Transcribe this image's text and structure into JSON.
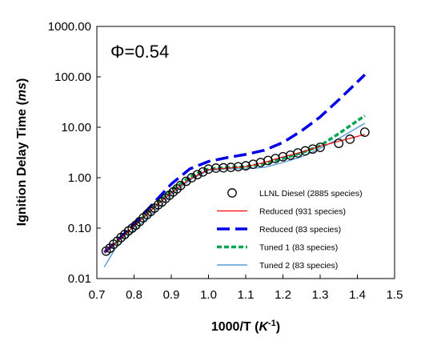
{
  "chart_data": {
    "type": "line",
    "annotation": "Φ=0.54",
    "xlabel": {
      "prefix": "1000/T (",
      "unit": "K",
      "exp": "-1",
      "suffix": ")"
    },
    "ylabel": {
      "prefix": "Ignition Delay Time (",
      "unit": "ms",
      "suffix": ")"
    },
    "xlim": [
      0.7,
      1.5
    ],
    "ylim": [
      0.01,
      1000
    ],
    "yscale": "log",
    "grid": false,
    "legend_position": "bottom-right",
    "xticks": [
      {
        "v": 0.7,
        "label": "0.7"
      },
      {
        "v": 0.8,
        "label": "0.8"
      },
      {
        "v": 0.9,
        "label": "0.9"
      },
      {
        "v": 1.0,
        "label": "1.0"
      },
      {
        "v": 1.1,
        "label": "1.1"
      },
      {
        "v": 1.2,
        "label": "1.2"
      },
      {
        "v": 1.3,
        "label": "1.3"
      },
      {
        "v": 1.4,
        "label": "1.4"
      },
      {
        "v": 1.5,
        "label": "1.5"
      }
    ],
    "yticks": [
      {
        "v": 0.01,
        "label": "0.01"
      },
      {
        "v": 0.1,
        "label": "0.10"
      },
      {
        "v": 1,
        "label": "1.00"
      },
      {
        "v": 10,
        "label": "10.00"
      },
      {
        "v": 100,
        "label": "100.00"
      },
      {
        "v": 1000,
        "label": "1000.00"
      }
    ],
    "series": [
      {
        "name": "LLNL Diesel (2885 species)",
        "style": "markers",
        "color": "#000000",
        "x": [
          0.725,
          0.735,
          0.745,
          0.755,
          0.765,
          0.775,
          0.785,
          0.795,
          0.805,
          0.815,
          0.825,
          0.835,
          0.845,
          0.855,
          0.865,
          0.875,
          0.885,
          0.895,
          0.905,
          0.915,
          0.925,
          0.94,
          0.955,
          0.97,
          0.985,
          1.0,
          1.02,
          1.04,
          1.06,
          1.08,
          1.1,
          1.12,
          1.14,
          1.16,
          1.18,
          1.2,
          1.22,
          1.24,
          1.26,
          1.28,
          1.3,
          1.35,
          1.38,
          1.42
        ],
        "y": [
          0.035,
          0.04,
          0.048,
          0.055,
          0.065,
          0.075,
          0.088,
          0.1,
          0.115,
          0.135,
          0.16,
          0.185,
          0.215,
          0.25,
          0.29,
          0.33,
          0.39,
          0.45,
          0.52,
          0.6,
          0.7,
          0.85,
          1.0,
          1.15,
          1.3,
          1.48,
          1.55,
          1.57,
          1.6,
          1.65,
          1.72,
          1.85,
          2.0,
          2.2,
          2.4,
          2.6,
          2.8,
          3.1,
          3.4,
          3.7,
          4.0,
          4.8,
          5.8,
          8.0
        ]
      },
      {
        "name": "Reduced (931 species)",
        "style": "solid",
        "color": "#ff0000",
        "x": [
          0.72,
          0.75,
          0.8,
          0.85,
          0.9,
          0.95,
          1.0,
          1.05,
          1.1,
          1.15,
          1.2,
          1.25,
          1.3,
          1.35,
          1.42
        ],
        "y": [
          0.033,
          0.05,
          0.11,
          0.24,
          0.5,
          0.95,
          1.45,
          1.55,
          1.65,
          2.0,
          2.6,
          3.2,
          4.2,
          5.3,
          7.2
        ]
      },
      {
        "name": "Reduced (83 species)",
        "style": "dashed",
        "color": "#0000e6",
        "x": [
          0.72,
          0.75,
          0.8,
          0.85,
          0.9,
          0.95,
          1.0,
          1.05,
          1.1,
          1.15,
          1.2,
          1.25,
          1.3,
          1.35,
          1.42
        ],
        "y": [
          0.033,
          0.052,
          0.12,
          0.3,
          0.75,
          1.5,
          2.1,
          2.5,
          2.9,
          3.5,
          5.0,
          8.5,
          16,
          35,
          110
        ]
      },
      {
        "name": "Tuned 1 (83 species)",
        "style": "dotted",
        "color": "#00a651",
        "x": [
          0.72,
          0.75,
          0.8,
          0.85,
          0.9,
          0.95,
          1.0,
          1.05,
          1.1,
          1.15,
          1.2,
          1.25,
          1.3,
          1.35,
          1.42
        ],
        "y": [
          0.033,
          0.05,
          0.11,
          0.25,
          0.55,
          1.05,
          1.5,
          1.6,
          1.65,
          1.9,
          2.4,
          3.1,
          4.3,
          7.5,
          17
        ]
      },
      {
        "name": "Tuned 2 (83 species)",
        "style": "solid",
        "color": "#5b9bd5",
        "x": [
          0.72,
          0.75,
          0.8,
          0.85,
          0.9,
          0.95,
          1.0,
          1.05,
          1.1,
          1.15,
          1.2,
          1.25,
          1.3,
          1.35,
          1.42
        ],
        "y": [
          0.017,
          0.04,
          0.09,
          0.2,
          0.45,
          0.9,
          1.4,
          1.5,
          1.5,
          1.6,
          2.0,
          2.6,
          3.8,
          6.0,
          12
        ]
      }
    ]
  }
}
